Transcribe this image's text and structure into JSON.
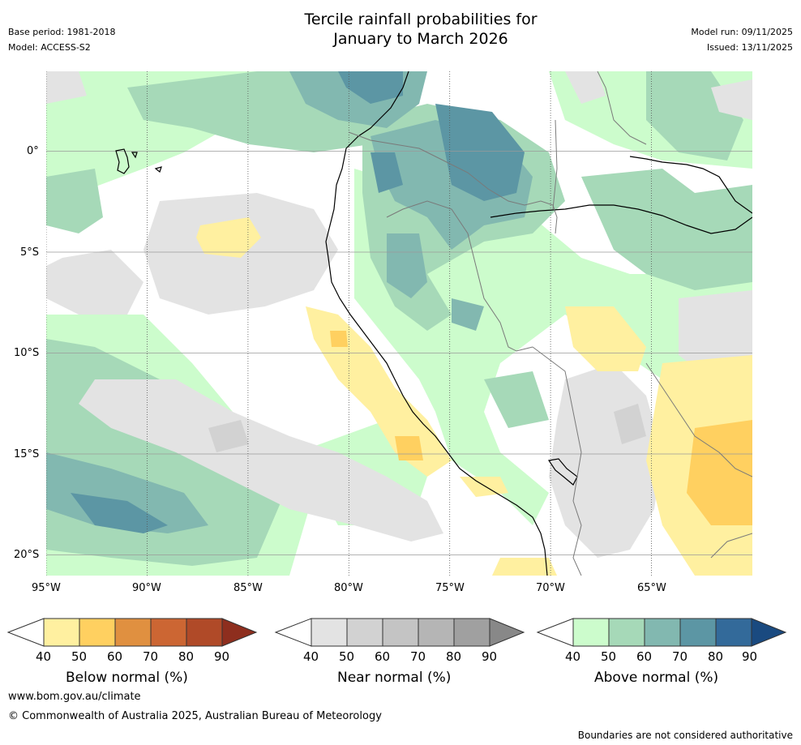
{
  "title": "Tercile rainfall probabilities for\nJanuary to March 2026",
  "meta_left": {
    "base_period": "Base period: 1981-2018",
    "model": "Model: ACCESS-S2"
  },
  "meta_right": {
    "model_run": "Model run: 09/11/2025",
    "issued": "Issued: 13/11/2025"
  },
  "map": {
    "lat_labels": [
      "0°",
      "5°S",
      "10°S",
      "15°S",
      "20°S"
    ],
    "lon_labels": [
      "95°W",
      "90°W",
      "85°W",
      "80°W",
      "75°W",
      "70°W",
      "65°W"
    ],
    "lon_range": [
      -95,
      -60
    ],
    "lat_range": [
      -21,
      4
    ],
    "colors": {
      "below": [
        "#fff0a0",
        "#ffd060",
        "#e09040",
        "#cc6633",
        "#b04a28",
        "#8e2e1e"
      ],
      "near": [
        "#e3e3e3",
        "#d2d2d2",
        "#c4c4c4",
        "#b5b5b5",
        "#a0a0a0",
        "#888888"
      ],
      "above": [
        "#ccfccc",
        "#a6d9b8",
        "#82b8b0",
        "#5c96a4",
        "#336a9a",
        "#1a4a80"
      ]
    }
  },
  "colorbars": [
    {
      "label": "Below normal (%)",
      "ticks": [
        "40",
        "50",
        "60",
        "70",
        "80",
        "90"
      ],
      "colors": [
        "#fff0a0",
        "#ffd060",
        "#e09040",
        "#cc6633",
        "#b04a28",
        "#8e2e1e"
      ]
    },
    {
      "label": "Near normal (%)",
      "ticks": [
        "40",
        "50",
        "60",
        "70",
        "80",
        "90"
      ],
      "colors": [
        "#e3e3e3",
        "#d2d2d2",
        "#c4c4c4",
        "#b5b5b5",
        "#a0a0a0",
        "#888888"
      ]
    },
    {
      "label": "Above normal (%)",
      "ticks": [
        "40",
        "50",
        "60",
        "70",
        "80",
        "90"
      ],
      "colors": [
        "#ccfccc",
        "#a6d9b8",
        "#82b8b0",
        "#5c96a4",
        "#336a9a",
        "#1a4a80"
      ]
    }
  ],
  "footer": {
    "url": "www.bom.gov.au/climate",
    "copyright": "© Commonwealth of Australia 2025, Australian Bureau of Meteorology",
    "disclaimer": "Boundaries are not considered authoritative"
  }
}
